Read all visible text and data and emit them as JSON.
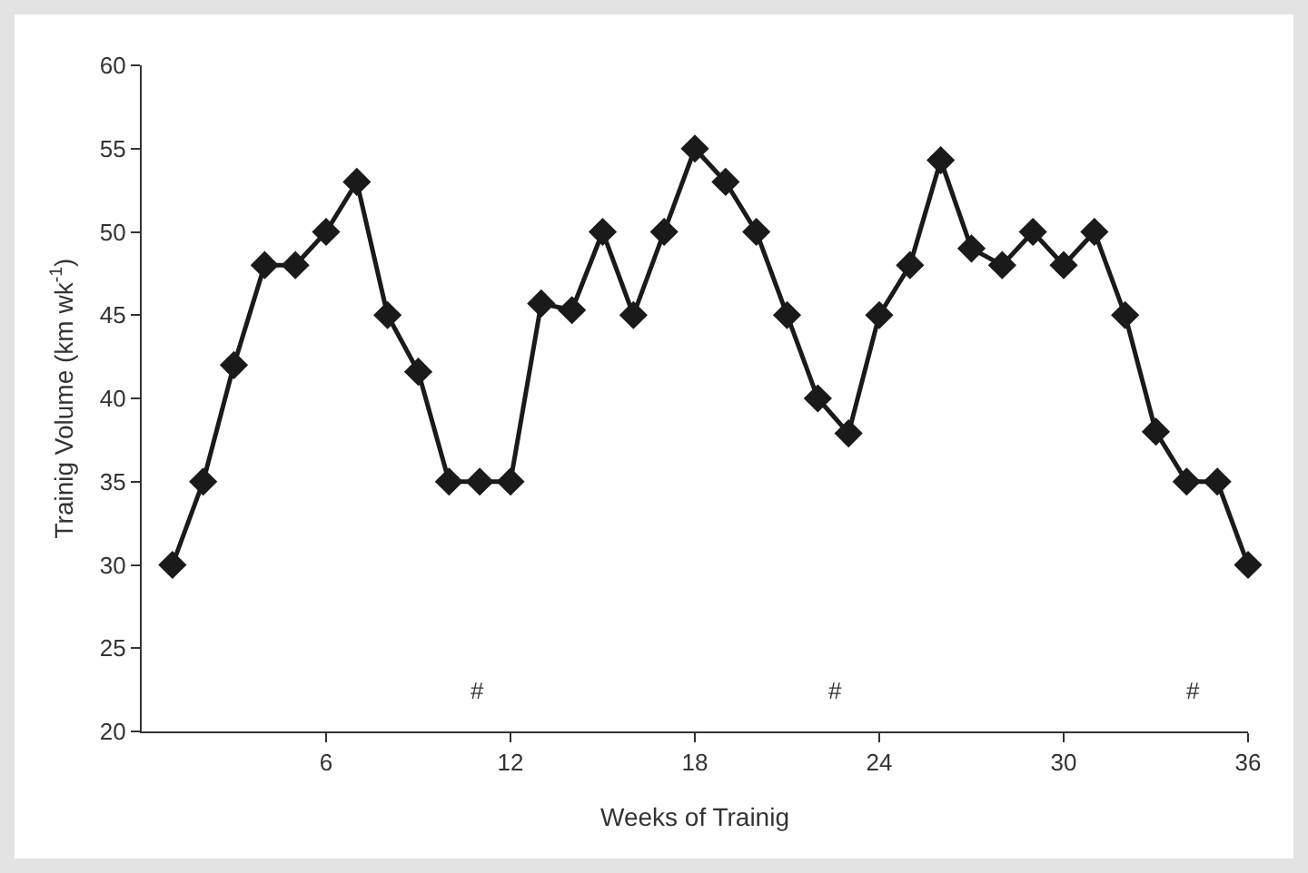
{
  "chart_data": {
    "type": "line",
    "xlabel": "Weeks of Trainig",
    "ylabel": "Trainig Volume (km wk$^{-1}$)",
    "x": [
      1,
      2,
      3,
      4,
      5,
      6,
      7,
      8,
      9,
      10,
      11,
      12,
      13,
      14,
      15,
      16,
      17,
      18,
      19,
      20,
      21,
      22,
      23,
      24,
      25,
      26,
      27,
      28,
      29,
      30,
      31,
      32,
      33,
      34,
      35,
      36
    ],
    "series": [
      {
        "color": "#1a1a1a",
        "values": [
          30,
          35,
          42,
          48,
          48,
          50,
          53,
          45,
          41.6,
          35,
          35,
          35,
          45.7,
          45.3,
          50,
          45,
          50,
          55,
          53,
          50,
          45,
          40,
          37.9,
          45,
          48,
          54.3,
          49,
          48,
          50,
          48,
          50,
          45,
          38,
          35,
          35,
          30
        ]
      }
    ],
    "xlim": [
      0,
      36
    ],
    "xticks": [
      6,
      12,
      18,
      24,
      30,
      36
    ],
    "ylim": [
      20,
      60
    ],
    "yticks": [
      20,
      25,
      30,
      35,
      40,
      45,
      50,
      55,
      60
    ],
    "grid": false,
    "marker": "diamond",
    "line_style": "solid",
    "annotations": [
      "#",
      "#",
      "#"
    ]
  }
}
